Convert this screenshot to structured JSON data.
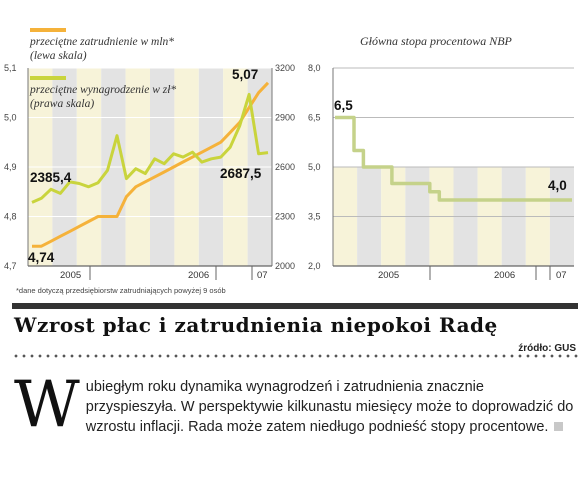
{
  "colors": {
    "employment_line": "#f5b23a",
    "wage_line": "#c9d43c",
    "rate_line": "#c5d28a",
    "band_light": "#f7f3d9",
    "band_grey": "#e3e3e3",
    "rule_dark": "#333333",
    "dropcap_bg": "#ffffff"
  },
  "chart_data": [
    {
      "type": "line",
      "title": "",
      "legend": [
        {
          "name": "przeciętne zatrudnienie w mln*",
          "sub": "(lewa skala)",
          "color": "#f5b23a"
        },
        {
          "name": "przeciętne wynagrodzenie w zł*",
          "sub": "(prawa skala)",
          "color": "#c9d43c"
        }
      ],
      "x_ticks": [
        "2005",
        "2006",
        "07"
      ],
      "ylim_left": [
        4.7,
        5.1
      ],
      "yticks_left": [
        "4,7",
        "4,8",
        "4,9",
        "5,0",
        "5,1"
      ],
      "ylim_right": [
        2000,
        3200
      ],
      "yticks_right": [
        "2000",
        "2300",
        "2600",
        "2900",
        "3200"
      ],
      "series": [
        {
          "name": "przeciętne zatrudnienie w mln*",
          "axis": "left",
          "x": [
            0,
            1,
            2,
            3,
            4,
            5,
            6,
            7,
            8,
            9,
            10,
            11,
            12,
            13,
            14,
            15,
            16,
            17,
            18,
            19,
            20,
            21,
            22,
            23,
            24,
            25
          ],
          "values": [
            4.74,
            4.74,
            4.75,
            4.76,
            4.77,
            4.78,
            4.79,
            4.8,
            4.8,
            4.8,
            4.84,
            4.86,
            4.87,
            4.88,
            4.89,
            4.9,
            4.91,
            4.92,
            4.93,
            4.94,
            4.95,
            4.97,
            4.99,
            5.02,
            5.05,
            5.07
          ]
        },
        {
          "name": "przeciętne wynagrodzenie w zł*",
          "axis": "right",
          "x": [
            0,
            1,
            2,
            3,
            4,
            5,
            6,
            7,
            8,
            9,
            10,
            11,
            12,
            13,
            14,
            15,
            16,
            17,
            18,
            19,
            20,
            21,
            22,
            23,
            24,
            25
          ],
          "values": [
            2385.4,
            2410,
            2465,
            2440,
            2510,
            2500,
            2480,
            2505,
            2580,
            2790,
            2530,
            2590,
            2560,
            2650,
            2620,
            2680,
            2660,
            2690,
            2630,
            2650,
            2660,
            2720,
            2850,
            3040,
            2680,
            2687.5
          ]
        }
      ],
      "annotations": [
        {
          "text": "2385,4"
        },
        {
          "text": "4,74"
        },
        {
          "text": "5,07"
        },
        {
          "text": "2687,5"
        }
      ],
      "footnote": "*dane dotyczą przedsiębiorstw zatrudniających powyżej 9 osób"
    },
    {
      "type": "line",
      "title": "Główna stopa procentowa NBP",
      "x_ticks": [
        "2005",
        "2006",
        "07"
      ],
      "ylim": [
        2.0,
        8.0
      ],
      "yticks": [
        "2,0",
        "3,5",
        "5,0",
        "6,5",
        "8,0"
      ],
      "series": [
        {
          "name": "",
          "x": [
            0,
            1,
            2,
            3,
            5,
            6,
            9,
            10,
            11,
            18,
            25
          ],
          "values": [
            6.5,
            6.5,
            5.5,
            5.0,
            5.0,
            4.5,
            4.5,
            4.25,
            4.0,
            4.0,
            4.0
          ]
        }
      ],
      "annotations": [
        {
          "text": "6,5"
        },
        {
          "text": "4,0"
        }
      ]
    }
  ],
  "article": {
    "headline": "Wzrost płac i zatrudnienia niepokoi Radę",
    "source": "źródło: GUS",
    "dropcap": "W",
    "body": "ubiegłym roku dynamika wynagrodzeń i zatrudnienia znacznie przyspieszyła. W perspektywie kilkunastu miesięcy może to doprowadzić do wzrostu inflacji. Rada może zatem niedługo podnieść stopy procentowe."
  }
}
